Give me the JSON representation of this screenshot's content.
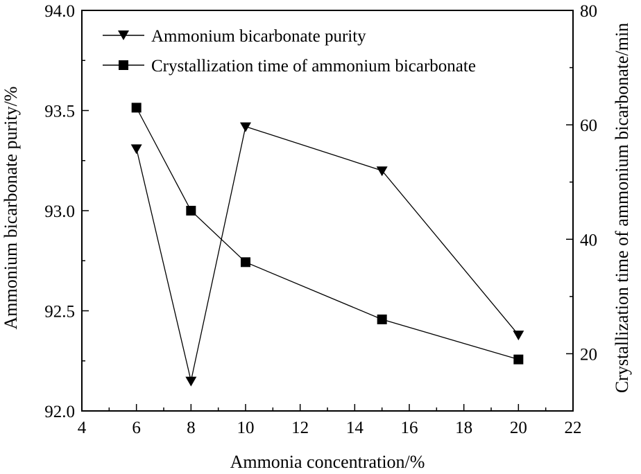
{
  "chart_data": {
    "type": "line",
    "x": [
      6,
      8,
      10,
      15,
      20
    ],
    "xlabel": "Ammonia concentration/%",
    "ylabel_left": "Ammonium bicarbonate purity/%",
    "ylabel_right": "Crystallization time of ammonium bicarbonate/min",
    "xlim": [
      4,
      22
    ],
    "ylim_left": [
      92.0,
      94.0
    ],
    "ylim_right": [
      10,
      80
    ],
    "x_ticks": [
      "4",
      "6",
      "8",
      "10",
      "12",
      "14",
      "16",
      "18",
      "20",
      "22"
    ],
    "y_left_ticks": [
      "92.0",
      "92.5",
      "93.0",
      "93.5",
      "94.0"
    ],
    "y_right_ticks": [
      "20",
      "40",
      "60",
      "80"
    ],
    "series": [
      {
        "name": "Ammonium bicarbonate purity",
        "axis": "left",
        "marker": "triangle-down",
        "values": [
          93.31,
          92.15,
          93.42,
          93.2,
          92.38
        ]
      },
      {
        "name": "Crystallization time of ammonium bicarbonate",
        "axis": "right",
        "marker": "square",
        "values": [
          63,
          45,
          36,
          26,
          19
        ]
      }
    ],
    "grid": false,
    "legend_position": "top-left"
  }
}
